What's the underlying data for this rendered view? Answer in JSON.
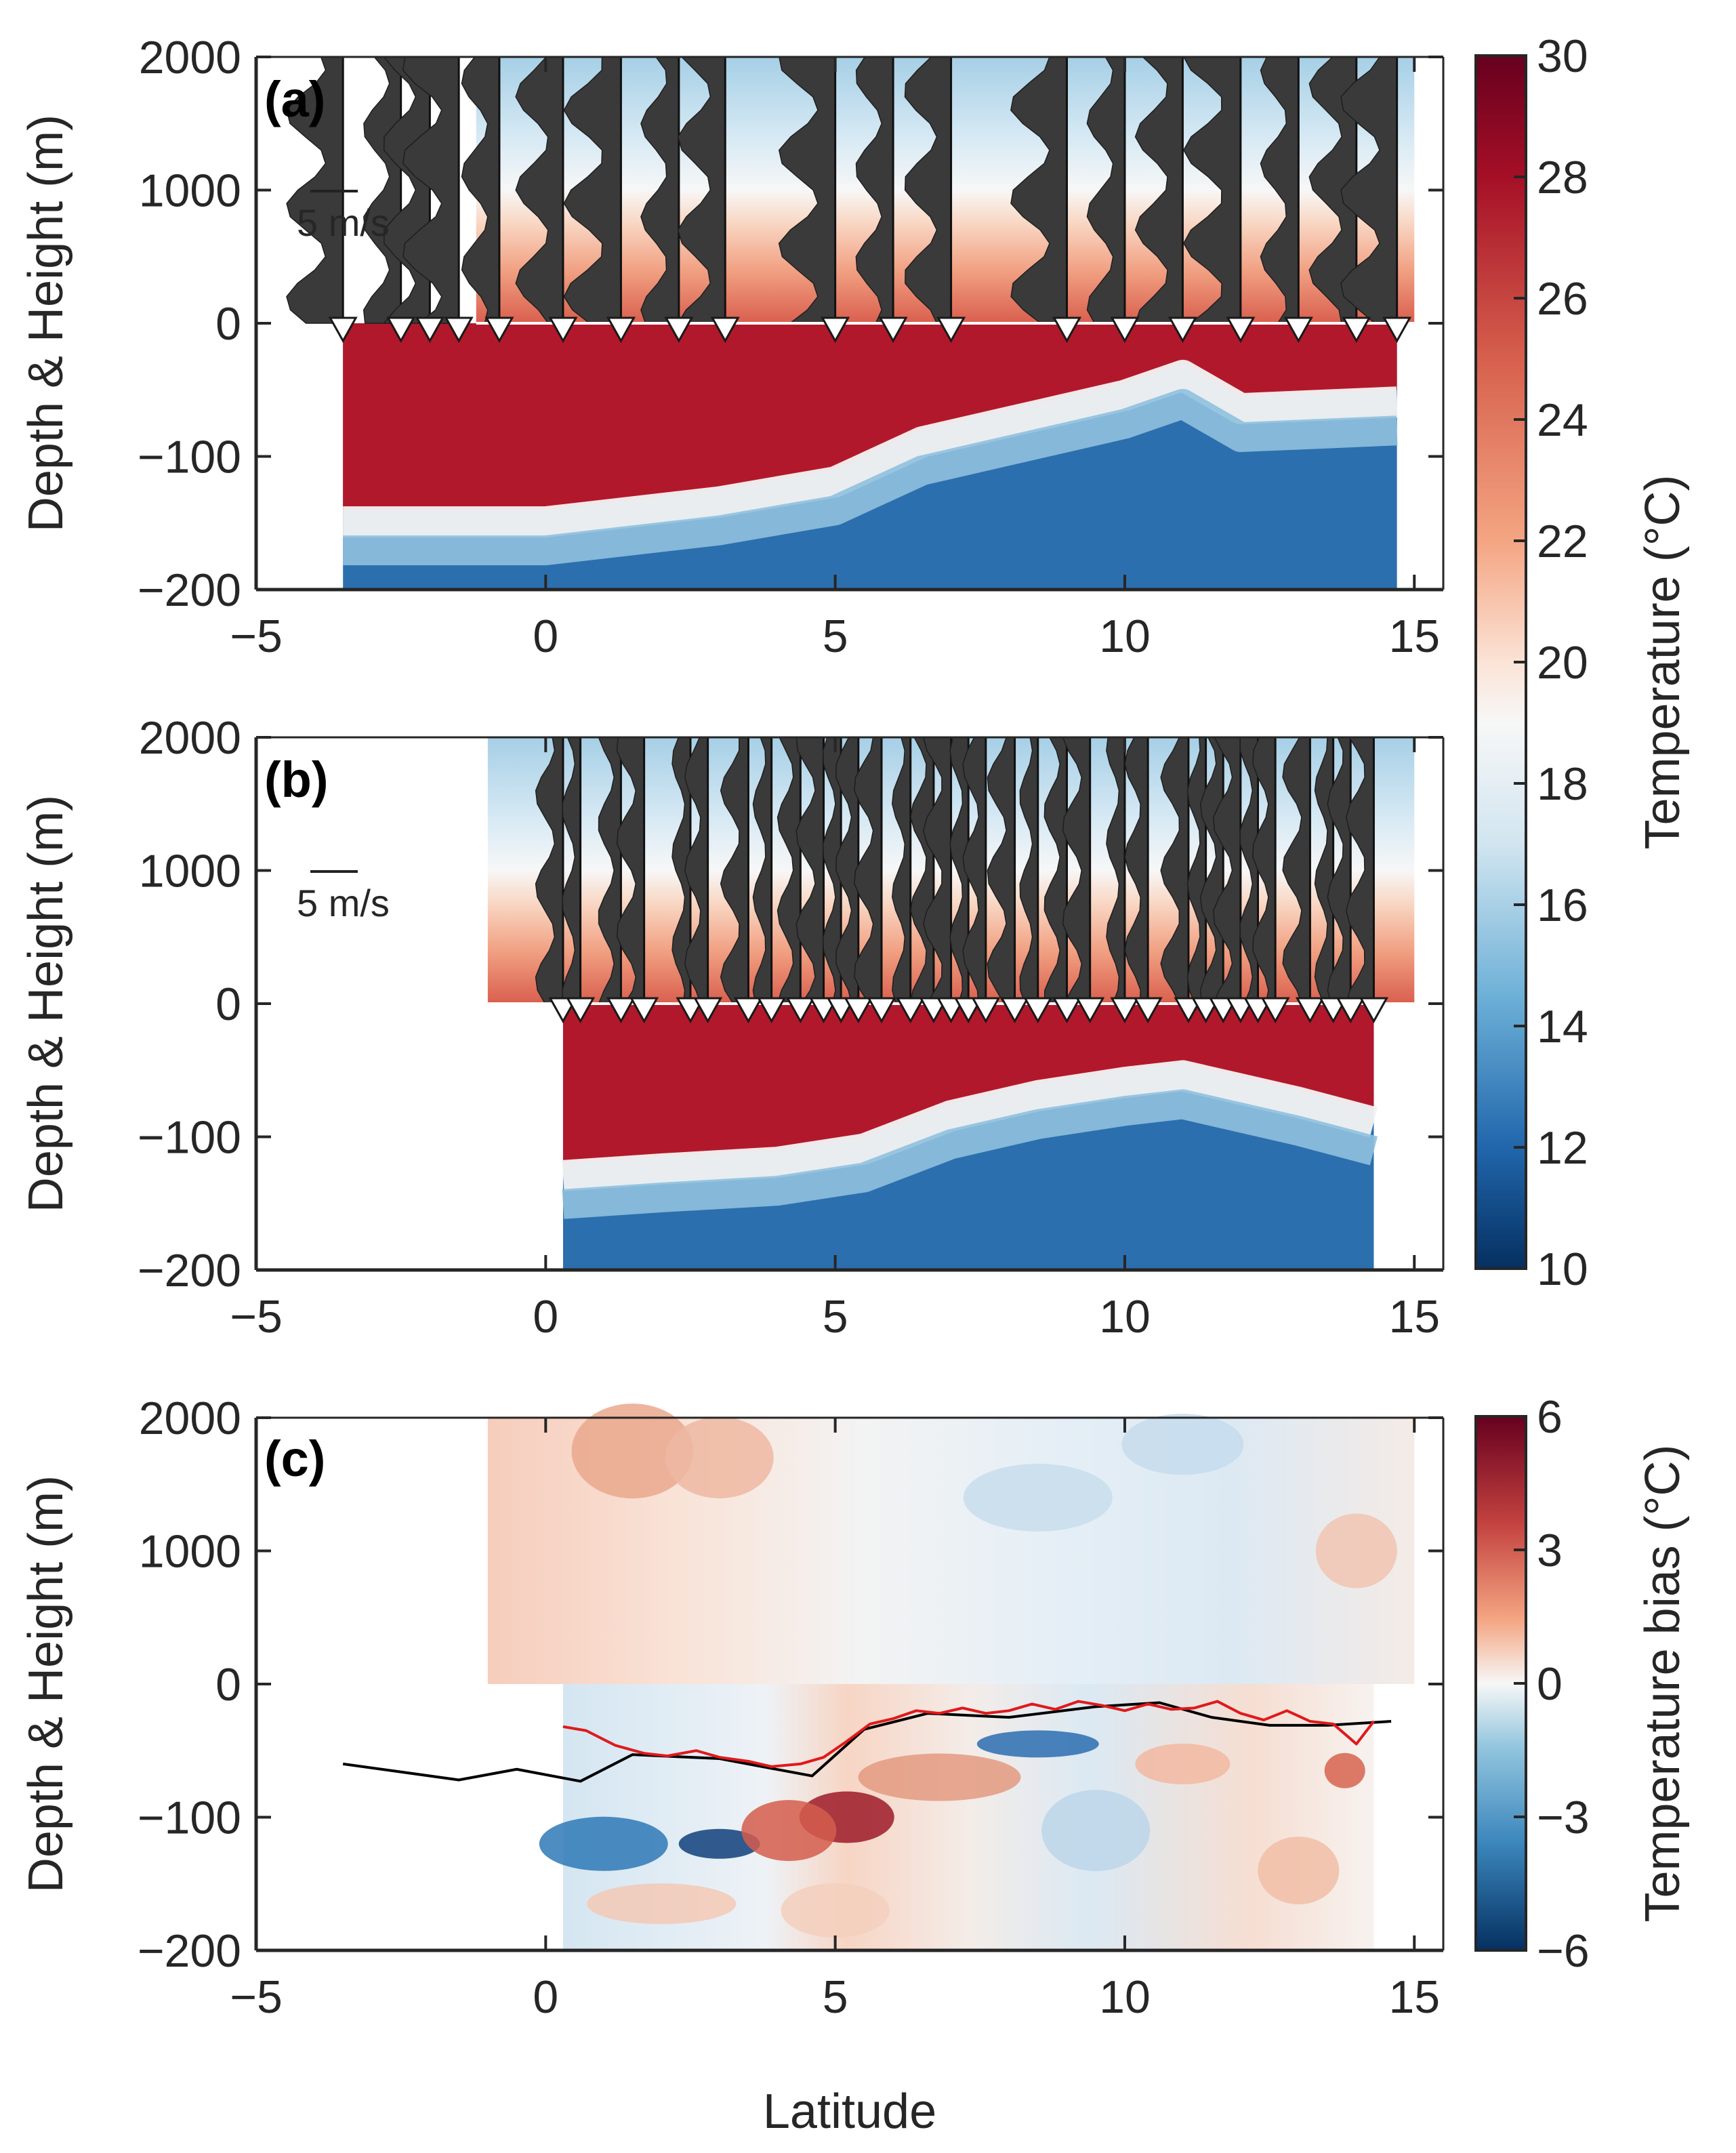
{
  "chart_data": [
    {
      "type": "heatmap",
      "panel_label": "(a)",
      "xlabel": "",
      "ylabel": "Depth & Height (m)",
      "xlim": [
        -5,
        15.5
      ],
      "x_ticks": [
        "−5",
        "0",
        "5",
        "10",
        "15"
      ],
      "y_ticks": [
        "2000",
        "1000",
        "0",
        "−100",
        "−200"
      ],
      "scale_label": "5 m/s",
      "ocean_lat_range": [
        -3.5,
        14.7
      ],
      "atmos_lat_range": [
        -1.2,
        15
      ],
      "profile_lats": [
        -3.5,
        -2.5,
        -2.0,
        -1.5,
        -0.8,
        0.3,
        1.3,
        2.3,
        3.1,
        5.0,
        6.0,
        7.0,
        9.0,
        10.0,
        11.0,
        12.0,
        13.0,
        14.0,
        14.7
      ],
      "mld_front": {
        "lat": [
          -3.5,
          0,
          3,
          5,
          6.5,
          8,
          10,
          11,
          12,
          14.7
        ],
        "depth": [
          -140,
          -140,
          -125,
          -110,
          -80,
          -65,
          -45,
          -30,
          -55,
          -50
        ]
      }
    },
    {
      "type": "heatmap",
      "panel_label": "(b)",
      "xlabel": "",
      "ylabel": "Depth & Height (m)",
      "xlim": [
        -5,
        15.5
      ],
      "x_ticks": [
        "−5",
        "0",
        "5",
        "10",
        "15"
      ],
      "y_ticks": [
        "2000",
        "1000",
        "0",
        "−100",
        "−200"
      ],
      "scale_label": "5 m/s",
      "ocean_lat_range": [
        0.3,
        14.3
      ],
      "atmos_lat_range": [
        -1.0,
        15.0
      ],
      "profile_lats": [
        0.3,
        0.6,
        1.3,
        1.7,
        2.5,
        2.8,
        3.5,
        3.9,
        4.4,
        4.8,
        5.1,
        5.4,
        5.8,
        6.3,
        6.7,
        7.0,
        7.3,
        7.6,
        8.1,
        8.5,
        9.0,
        9.4,
        10.0,
        10.4,
        11.1,
        11.4,
        11.7,
        12.0,
        12.3,
        12.6,
        13.2,
        13.6,
        13.9,
        14.3
      ],
      "mld_front": {
        "lat": [
          0.3,
          2,
          4,
          5.5,
          7,
          8.5,
          10,
          11,
          12,
          13,
          14.3
        ],
        "depth": [
          -120,
          -115,
          -110,
          -100,
          -75,
          -60,
          -50,
          -45,
          -55,
          -65,
          -80
        ]
      }
    },
    {
      "type": "heatmap",
      "panel_label": "(c)",
      "xlabel": "Latitude",
      "ylabel": "Depth & Height (m)",
      "xlim": [
        -5,
        15.5
      ],
      "x_ticks": [
        "−5",
        "0",
        "5",
        "10",
        "15"
      ],
      "y_ticks": [
        "2000",
        "1000",
        "0",
        "−100",
        "−200"
      ],
      "series": [
        {
          "name": "black line",
          "color": "#000000",
          "x": [
            -3.5,
            -1.5,
            -0.5,
            0.6,
            1.5,
            3.0,
            4.6,
            5.5,
            6.6,
            8.0,
            9.5,
            10.6,
            11.5,
            12.5,
            13.5,
            14.6
          ],
          "y": [
            -60,
            -72,
            -64,
            -73,
            -53,
            -56,
            -69,
            -34,
            -22,
            -25,
            -17,
            -14,
            -25,
            -31,
            -31,
            -28
          ]
        },
        {
          "name": "red line",
          "color": "#e0191c",
          "x": [
            0.3,
            0.7,
            1.2,
            1.7,
            2.1,
            2.6,
            3.0,
            3.5,
            3.9,
            4.4,
            4.8,
            5.2,
            5.6,
            6.0,
            6.4,
            6.8,
            7.2,
            7.6,
            8.0,
            8.4,
            8.8,
            9.2,
            9.6,
            10.0,
            10.4,
            10.8,
            11.2,
            11.6,
            12.0,
            12.4,
            12.8,
            13.2,
            13.6,
            14.0,
            14.3
          ],
          "y": [
            -32,
            -35,
            -46,
            -52,
            -54,
            -50,
            -55,
            -58,
            -62,
            -60,
            -55,
            -43,
            -30,
            -26,
            -20,
            -22,
            -18,
            -22,
            -20,
            -15,
            -19,
            -13,
            -16,
            -20,
            -15,
            -19,
            -18,
            -13,
            -22,
            -27,
            -20,
            -28,
            -30,
            -45,
            -28
          ]
        }
      ]
    }
  ],
  "colorbars": [
    {
      "label": "Temperature (°C)",
      "range": [
        10,
        30
      ],
      "ticks": [
        "30",
        "28",
        "26",
        "24",
        "22",
        "20",
        "18",
        "16",
        "14",
        "12",
        "10"
      ]
    },
    {
      "label": "Temperature bias (°C)",
      "range": [
        -6,
        6
      ],
      "ticks": [
        "6",
        "3",
        "0",
        "−3",
        "−6"
      ]
    }
  ]
}
